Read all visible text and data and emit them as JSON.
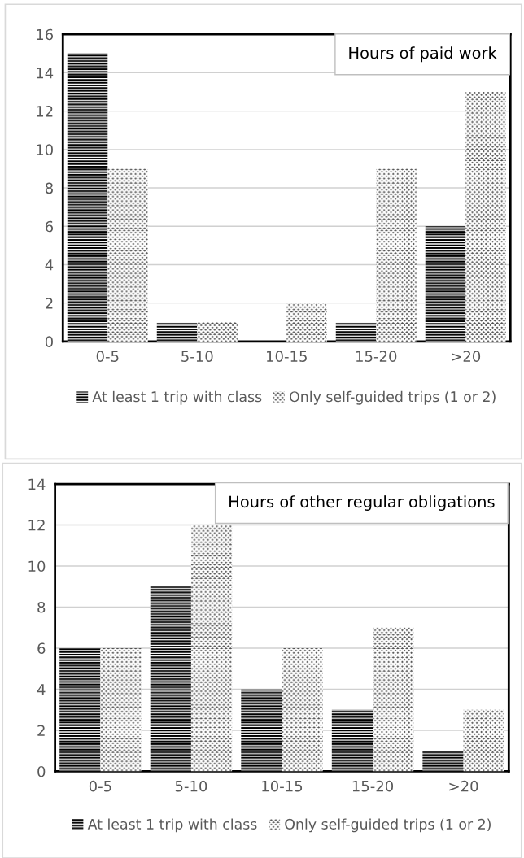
{
  "chart_data": [
    {
      "type": "bar",
      "title": "Hours of paid work",
      "categories": [
        "0-5",
        "5-10",
        "10-15",
        "15-20",
        ">20"
      ],
      "series": [
        {
          "name": "At least 1 trip with class",
          "color": "#000000",
          "values": [
            15,
            1,
            0,
            1,
            6
          ]
        },
        {
          "name": "Only self-guided trips (1 or 2)",
          "color": "#4d4d4d",
          "values": [
            9,
            1,
            2,
            9,
            13
          ]
        }
      ],
      "ylim": [
        0,
        16
      ],
      "yticks": [
        0,
        2,
        4,
        6,
        8,
        10,
        12,
        14,
        16
      ],
      "grid": "y",
      "legend": "bottom"
    },
    {
      "type": "bar",
      "title": "Hours of other regular obligations",
      "categories": [
        "0-5",
        "5-10",
        "10-15",
        "15-20",
        ">20"
      ],
      "series": [
        {
          "name": "At least 1 trip with class",
          "color": "#000000",
          "values": [
            6,
            9,
            4,
            3,
            1
          ]
        },
        {
          "name": "Only self-guided trips (1 or 2)",
          "color": "#4d4d4d",
          "values": [
            6,
            12,
            6,
            7,
            3
          ]
        }
      ],
      "ylim": [
        0,
        14
      ],
      "yticks": [
        0,
        2,
        4,
        6,
        8,
        10,
        12,
        14
      ],
      "grid": "y",
      "legend": "bottom"
    }
  ]
}
